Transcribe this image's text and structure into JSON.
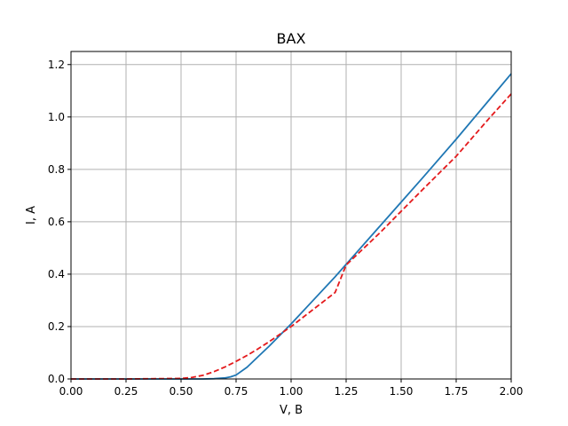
{
  "chart_data": {
    "type": "line",
    "title": "ВАХ",
    "xlabel": "V, В",
    "ylabel": "I, A",
    "xlim": [
      0,
      2
    ],
    "ylim": [
      0,
      1.25
    ],
    "xticks": [
      "0.00",
      "0.25",
      "0.50",
      "0.75",
      "1.00",
      "1.25",
      "1.50",
      "1.75",
      "2.00"
    ],
    "yticks": [
      "0.0",
      "0.2",
      "0.4",
      "0.6",
      "0.8",
      "1.0",
      "1.2"
    ],
    "xtick_values": [
      0,
      0.25,
      0.5,
      0.75,
      1.0,
      1.25,
      1.5,
      1.75,
      2.0
    ],
    "ytick_values": [
      0,
      0.2,
      0.4,
      0.6,
      0.8,
      1.0,
      1.2
    ],
    "grid": true,
    "series": [
      {
        "color": "#1f77b4",
        "style": "solid",
        "x": [
          0,
          0.25,
          0.5,
          0.6,
          0.65,
          0.7,
          0.725,
          0.75,
          0.8,
          0.85,
          0.9,
          1.0,
          1.1,
          1.2,
          1.3,
          1.4,
          1.5,
          1.6,
          1.75,
          1.9,
          2.0
        ],
        "y": [
          0,
          0,
          0,
          0,
          0.001,
          0.004,
          0.008,
          0.015,
          0.045,
          0.085,
          0.125,
          0.21,
          0.3,
          0.39,
          0.485,
          0.58,
          0.675,
          0.77,
          0.915,
          1.065,
          1.165
        ]
      },
      {
        "color": "#e41a1c",
        "style": "dashed",
        "x": [
          0,
          0.25,
          0.5,
          0.55,
          0.6,
          0.65,
          0.7,
          0.75,
          0.8,
          0.85,
          0.9,
          1.0,
          1.1,
          1.2,
          1.25,
          1.3,
          1.4,
          1.5,
          1.6,
          1.75,
          1.9,
          2.0
        ],
        "y": [
          0,
          0,
          0.002,
          0.006,
          0.014,
          0.028,
          0.046,
          0.067,
          0.09,
          0.115,
          0.142,
          0.2,
          0.265,
          0.33,
          0.435,
          0.475,
          0.555,
          0.64,
          0.725,
          0.85,
          0.995,
          1.088
        ]
      }
    ]
  }
}
